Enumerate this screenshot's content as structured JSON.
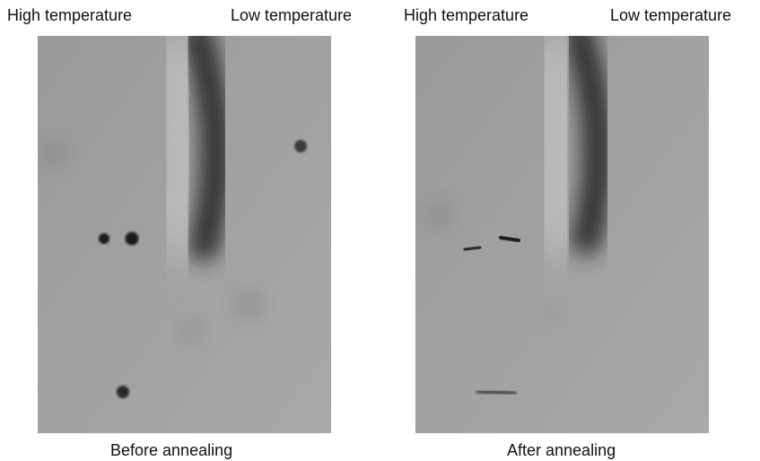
{
  "panels": [
    {
      "high_label": "High temperature",
      "low_label": "Low temperature",
      "caption": "Before annealing"
    },
    {
      "high_label": "High temperature",
      "low_label": "Low temperature",
      "caption": "After annealing"
    }
  ]
}
